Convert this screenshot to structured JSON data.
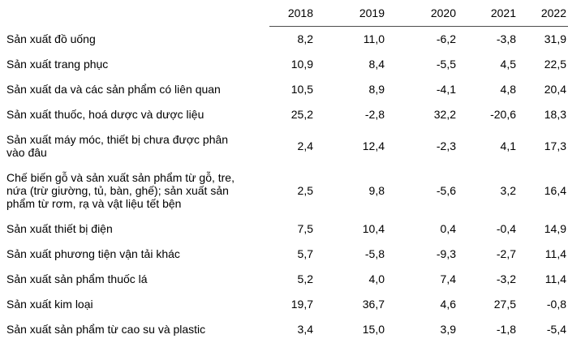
{
  "chart_data": {
    "type": "table",
    "columns": [
      "2018",
      "2019",
      "2020",
      "2021",
      "2022"
    ],
    "rows": [
      {
        "label": "Sản xuất đồ uống",
        "values": [
          "8,2",
          "11,0",
          "-6,2",
          "-3,8",
          "31,9"
        ]
      },
      {
        "label": "Sản xuất trang phục",
        "values": [
          "10,9",
          "8,4",
          "-5,5",
          "4,5",
          "22,5"
        ]
      },
      {
        "label": "Sản xuất da và các sản phẩm có liên quan",
        "values": [
          "10,5",
          "8,9",
          "-4,1",
          "4,8",
          "20,4"
        ]
      },
      {
        "label": "Sản xuất thuốc, hoá dược và dược liệu",
        "values": [
          "25,2",
          "-2,8",
          "32,2",
          "-20,6",
          "18,3"
        ]
      },
      {
        "label": "Sản xuất máy móc, thiết bị chưa được phân vào đâu",
        "values": [
          "2,4",
          "12,4",
          "-2,3",
          "4,1",
          "17,3"
        ]
      },
      {
        "label": "Chế biến gỗ và sản xuất sản phẩm từ gỗ, tre, nứa (trừ giường, tủ, bàn, ghế); sản xuất sản phẩm từ rơm, rạ và vật liệu tết bện",
        "values": [
          "2,5",
          "9,8",
          "-5,6",
          "3,2",
          "16,4"
        ]
      },
      {
        "label": "Sản xuất thiết bị điện",
        "values": [
          "7,5",
          "10,4",
          "0,4",
          "-0,4",
          "14,9"
        ]
      },
      {
        "label": "Sản xuất phương tiện vận tải khác",
        "values": [
          "5,7",
          "-5,8",
          "-9,3",
          "-2,7",
          "11,4"
        ]
      },
      {
        "label": "Sản xuất sản phẩm thuốc lá",
        "values": [
          "5,2",
          "4,0",
          "7,4",
          "-3,2",
          "11,4"
        ]
      },
      {
        "label": "Sản xuất kim loại",
        "values": [
          "19,7",
          "36,7",
          "4,6",
          "27,5",
          "-0,8"
        ]
      },
      {
        "label": "Sản xuất sản phẩm từ cao su và plastic",
        "values": [
          "3,4",
          "15,0",
          "3,9",
          "-1,8",
          "-5,4"
        ]
      }
    ],
    "colors": {
      "text": "#000000",
      "header_rule": "#4d4d4d",
      "background": "#ffffff"
    },
    "layout": {
      "grid": "header-underline-only",
      "value_alignment": "right",
      "decimal_separator": "comma"
    }
  }
}
